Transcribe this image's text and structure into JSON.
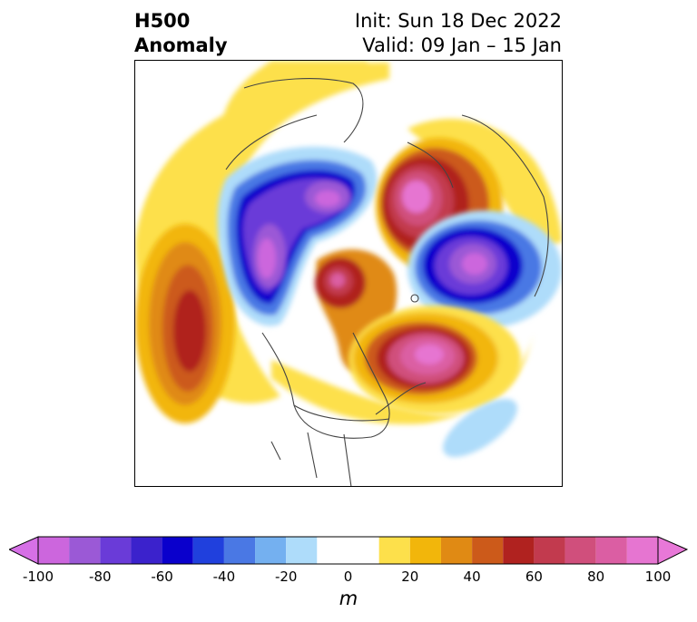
{
  "title": {
    "left_line1": "H500",
    "left_line2": "Anomaly",
    "init": "Init: Sun 18 Dec 2022",
    "valid": "Valid: 09 Jan – 15 Jan"
  },
  "map": {
    "projection": "north-polar-stereographic",
    "field": "500 hPa geopotential height anomaly",
    "anomaly_centers": [
      {
        "region": "Gulf of Alaska / NE Pacific",
        "sign": "positive",
        "peak_m": 60
      },
      {
        "region": "East Siberia / Bering Sea",
        "sign": "negative",
        "peak_m": -90
      },
      {
        "region": "Arctic Ocean north of Alaska",
        "sign": "positive",
        "peak_m": 60
      },
      {
        "region": "Scandinavia / Barents Sea",
        "sign": "positive",
        "peak_m": 90
      },
      {
        "region": "Greenland / Canadian Archipelago",
        "sign": "negative",
        "peak_m": -90
      },
      {
        "region": "Western Europe / Eastern Atlantic",
        "sign": "positive",
        "peak_m": 90
      },
      {
        "region": "Central Atlantic",
        "sign": "negative",
        "peak_m": -20
      }
    ]
  },
  "colorbar": {
    "unit": "m",
    "extend": "both",
    "levels": [
      -100,
      -90,
      -80,
      -70,
      -60,
      -50,
      -40,
      -30,
      -20,
      -10,
      10,
      20,
      30,
      40,
      50,
      60,
      70,
      80,
      90,
      100
    ],
    "colors": [
      "#cc66dd",
      "#9b59d6",
      "#6a3bd8",
      "#3b22cc",
      "#0a00cc",
      "#2040dd",
      "#4a78e4",
      "#74b0f0",
      "#aedcfa",
      "#ffffff",
      "#fde04b",
      "#f2b60b",
      "#e08a14",
      "#cc5a1a",
      "#b0221f",
      "#c23a4e",
      "#d04f7c",
      "#db5ea3",
      "#e675d1"
    ],
    "under_color": "#d670e6",
    "over_color": "#e878d8",
    "tick_labels": [
      "-100",
      "-80",
      "-60",
      "-40",
      "-20",
      "0",
      "20",
      "40",
      "60",
      "80",
      "100"
    ]
  }
}
